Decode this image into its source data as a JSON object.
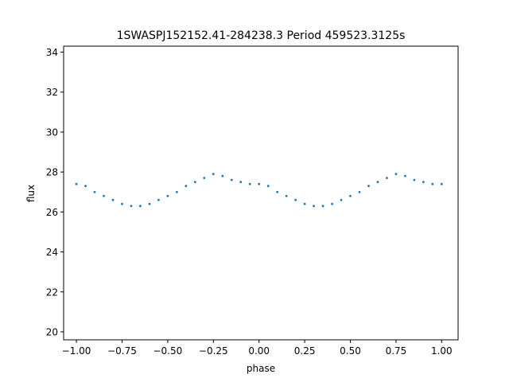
{
  "chart_data": {
    "type": "scatter",
    "title": "1SWASPJ152152.41-284238.3 Period 459523.3125s",
    "xlabel": "phase",
    "ylabel": "flux",
    "xlim": [
      -1.07,
      1.09
    ],
    "ylim": [
      19.6,
      34.3
    ],
    "xticks": [
      -1.0,
      -0.75,
      -0.5,
      -0.25,
      0.0,
      0.25,
      0.5,
      0.75,
      1.0
    ],
    "xtick_labels": [
      "−1.00",
      "−0.75",
      "−0.50",
      "−0.25",
      "0.00",
      "0.25",
      "0.50",
      "0.75",
      "1.00"
    ],
    "yticks": [
      20,
      22,
      24,
      26,
      28,
      30,
      32,
      34
    ],
    "ytick_labels": [
      "20",
      "22",
      "24",
      "26",
      "28",
      "30",
      "32",
      "34"
    ],
    "grid": false,
    "marker_color": "#1f77b4",
    "series": [
      {
        "x": [
          -1.0,
          -0.95,
          -0.9,
          -0.85,
          -0.8,
          -0.75,
          -0.7,
          -0.65,
          -0.6,
          -0.55,
          -0.5,
          -0.45,
          -0.4,
          -0.35,
          -0.3,
          -0.25,
          -0.2,
          -0.15,
          -0.1,
          -0.05,
          0.0,
          0.05,
          0.1,
          0.15,
          0.2,
          0.25,
          0.3,
          0.35,
          0.4,
          0.45,
          0.5,
          0.55,
          0.6,
          0.65,
          0.7,
          0.75,
          0.8,
          0.85,
          0.9,
          0.95,
          1.0
        ],
        "y": [
          27.4,
          27.3,
          27.0,
          26.8,
          26.6,
          26.4,
          26.3,
          26.3,
          26.4,
          26.6,
          26.8,
          27.0,
          27.3,
          27.5,
          27.7,
          27.9,
          27.8,
          27.6,
          27.5,
          27.4,
          27.4,
          27.3,
          27.0,
          26.8,
          26.6,
          26.4,
          26.3,
          26.3,
          26.4,
          26.6,
          26.8,
          27.0,
          27.3,
          27.5,
          27.7,
          27.9,
          27.8,
          27.6,
          27.5,
          27.4,
          27.4
        ]
      }
    ]
  }
}
